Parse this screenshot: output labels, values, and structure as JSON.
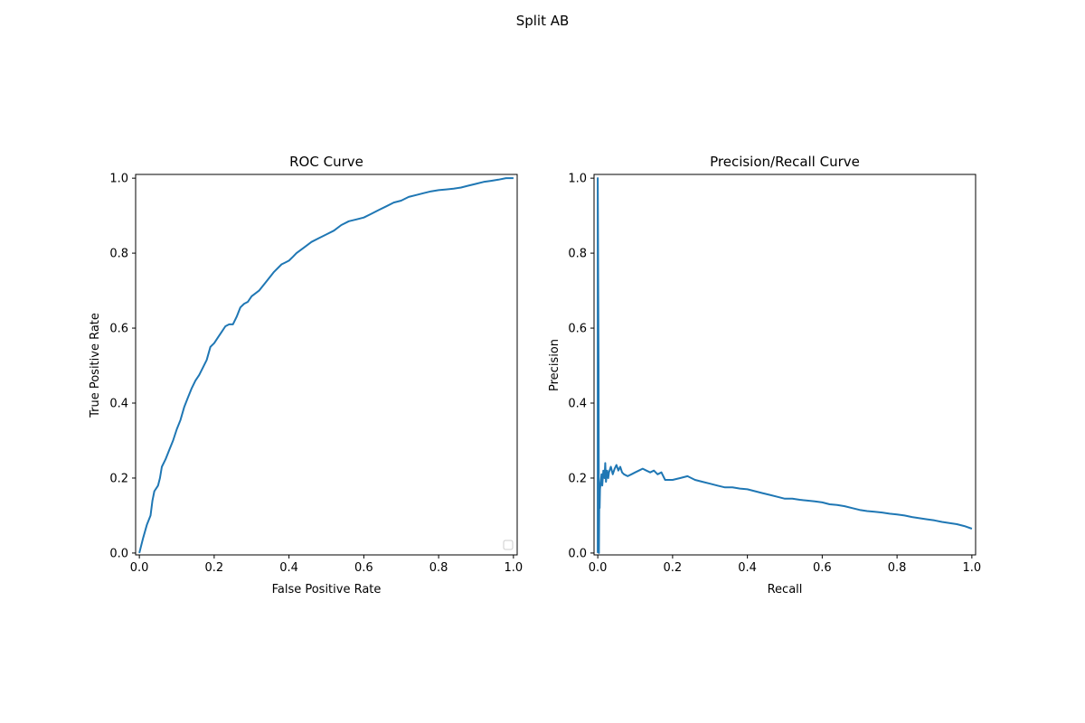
{
  "figure": {
    "title": "Split AB"
  },
  "colors": {
    "line": "#1f77b4",
    "axes": "#000000",
    "background": "#ffffff"
  },
  "chart_data": [
    {
      "type": "line",
      "title": "ROC Curve",
      "xlabel": "False Positive Rate",
      "ylabel": "True Positive Rate",
      "xlim": [
        -0.01,
        1.01
      ],
      "ylim": [
        -0.005,
        1.01
      ],
      "xticks": [
        "0.0",
        "0.2",
        "0.4",
        "0.6",
        "0.8",
        "1.0"
      ],
      "yticks": [
        "0.0",
        "0.2",
        "0.4",
        "0.6",
        "0.8",
        "1.0"
      ],
      "grid": false,
      "legend": {
        "placement": "lower-right",
        "entries": []
      },
      "series": [
        {
          "x": [
            0.0,
            0.01,
            0.02,
            0.03,
            0.035,
            0.04,
            0.05,
            0.055,
            0.06,
            0.07,
            0.08,
            0.09,
            0.1,
            0.11,
            0.12,
            0.13,
            0.14,
            0.15,
            0.16,
            0.17,
            0.18,
            0.19,
            0.2,
            0.21,
            0.22,
            0.23,
            0.24,
            0.25,
            0.26,
            0.27,
            0.28,
            0.29,
            0.3,
            0.32,
            0.34,
            0.36,
            0.38,
            0.39,
            0.4,
            0.41,
            0.42,
            0.44,
            0.46,
            0.48,
            0.5,
            0.52,
            0.54,
            0.56,
            0.58,
            0.6,
            0.62,
            0.64,
            0.66,
            0.68,
            0.7,
            0.72,
            0.74,
            0.76,
            0.78,
            0.8,
            0.82,
            0.84,
            0.86,
            0.88,
            0.9,
            0.92,
            0.94,
            0.96,
            0.98,
            1.0
          ],
          "y": [
            0.0,
            0.04,
            0.075,
            0.1,
            0.14,
            0.165,
            0.18,
            0.2,
            0.23,
            0.25,
            0.275,
            0.3,
            0.33,
            0.355,
            0.39,
            0.415,
            0.44,
            0.46,
            0.475,
            0.495,
            0.515,
            0.55,
            0.56,
            0.575,
            0.59,
            0.605,
            0.61,
            0.61,
            0.63,
            0.655,
            0.665,
            0.67,
            0.685,
            0.7,
            0.725,
            0.75,
            0.77,
            0.775,
            0.78,
            0.79,
            0.8,
            0.815,
            0.83,
            0.84,
            0.85,
            0.86,
            0.875,
            0.885,
            0.89,
            0.895,
            0.905,
            0.915,
            0.925,
            0.935,
            0.94,
            0.95,
            0.955,
            0.96,
            0.965,
            0.968,
            0.97,
            0.972,
            0.975,
            0.98,
            0.985,
            0.99,
            0.993,
            0.996,
            1.0,
            1.0
          ]
        }
      ]
    },
    {
      "type": "line",
      "title": "Precision/Recall Curve",
      "xlabel": "Recall",
      "ylabel": "Precision",
      "xlim": [
        -0.01,
        1.01
      ],
      "ylim": [
        -0.005,
        1.01
      ],
      "xticks": [
        "0.0",
        "0.2",
        "0.4",
        "0.6",
        "0.8",
        "1.0"
      ],
      "yticks": [
        "0.0",
        "0.2",
        "0.4",
        "0.6",
        "0.8",
        "1.0"
      ],
      "grid": false,
      "series": [
        {
          "x": [
            0.0,
            0.0,
            0.002,
            0.003,
            0.004,
            0.005,
            0.006,
            0.008,
            0.01,
            0.012,
            0.015,
            0.018,
            0.02,
            0.022,
            0.025,
            0.028,
            0.03,
            0.035,
            0.04,
            0.045,
            0.05,
            0.055,
            0.06,
            0.065,
            0.07,
            0.08,
            0.09,
            0.1,
            0.11,
            0.12,
            0.13,
            0.14,
            0.15,
            0.16,
            0.17,
            0.18,
            0.2,
            0.22,
            0.24,
            0.26,
            0.28,
            0.3,
            0.32,
            0.34,
            0.36,
            0.38,
            0.4,
            0.42,
            0.44,
            0.46,
            0.48,
            0.5,
            0.52,
            0.54,
            0.56,
            0.58,
            0.6,
            0.62,
            0.64,
            0.66,
            0.68,
            0.7,
            0.72,
            0.74,
            0.76,
            0.78,
            0.8,
            0.82,
            0.84,
            0.86,
            0.88,
            0.9,
            0.92,
            0.94,
            0.96,
            0.98,
            1.0
          ],
          "y": [
            0.0,
            1.0,
            0.5,
            0.0,
            0.15,
            0.12,
            0.17,
            0.19,
            0.21,
            0.18,
            0.22,
            0.2,
            0.24,
            0.19,
            0.22,
            0.2,
            0.215,
            0.23,
            0.21,
            0.225,
            0.235,
            0.22,
            0.23,
            0.215,
            0.21,
            0.205,
            0.21,
            0.215,
            0.22,
            0.225,
            0.22,
            0.215,
            0.22,
            0.21,
            0.215,
            0.195,
            0.195,
            0.2,
            0.205,
            0.195,
            0.19,
            0.185,
            0.18,
            0.175,
            0.175,
            0.172,
            0.17,
            0.165,
            0.16,
            0.155,
            0.15,
            0.145,
            0.145,
            0.142,
            0.14,
            0.138,
            0.135,
            0.13,
            0.128,
            0.125,
            0.12,
            0.115,
            0.112,
            0.11,
            0.108,
            0.105,
            0.103,
            0.1,
            0.096,
            0.093,
            0.09,
            0.087,
            0.083,
            0.08,
            0.077,
            0.072,
            0.065
          ]
        }
      ]
    }
  ]
}
